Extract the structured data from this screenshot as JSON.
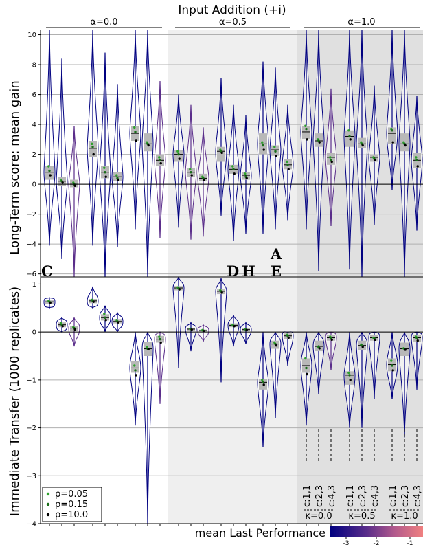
{
  "chart_data": [
    {
      "type": "violin",
      "title": "Input Addition (+i)",
      "ylabel": "Long-Term score: mean gain",
      "ylim": [
        -6.2,
        10.3
      ],
      "yticks": [
        -6,
        -4,
        -2,
        0,
        2,
        4,
        6,
        8,
        10
      ],
      "grid": "horizontal",
      "groups": [
        {
          "label": "α=0.0",
          "background": "#ffffff"
        },
        {
          "label": "α=0.5",
          "background": "#efefef"
        },
        {
          "label": "α=1.0",
          "background": "#e0e0e0"
        }
      ],
      "violins": [
        {
          "median": 0.8,
          "q1": 0.3,
          "q3": 1.2,
          "min": -4.1,
          "max": 10.3,
          "color": "#000080",
          "points": [
            1.2,
            0.9,
            0.6
          ]
        },
        {
          "median": 0.2,
          "q1": -0.1,
          "q3": 0.5,
          "min": -5.0,
          "max": 8.4,
          "color": "#000080",
          "points": [
            0.3,
            0.2,
            0.1
          ]
        },
        {
          "median": 0.0,
          "q1": -0.2,
          "q3": 0.3,
          "min": -6.2,
          "max": 3.9,
          "color": "#5a2d8a",
          "points": [
            0.1,
            0.0,
            -0.1
          ]
        },
        {
          "median": 2.4,
          "q1": 1.8,
          "q3": 2.9,
          "min": -4.1,
          "max": 10.3,
          "color": "#000080",
          "points": [
            2.7,
            2.5,
            2.0
          ]
        },
        {
          "median": 0.8,
          "q1": 0.4,
          "q3": 1.2,
          "min": -6.2,
          "max": 8.8,
          "color": "#000080",
          "points": [
            1.1,
            0.8,
            0.5
          ]
        },
        {
          "median": 0.5,
          "q1": 0.2,
          "q3": 0.8,
          "min": -4.2,
          "max": 6.7,
          "color": "#000080",
          "points": [
            0.6,
            0.4,
            0.3
          ]
        },
        {
          "median": 3.4,
          "q1": 2.9,
          "q3": 3.9,
          "min": -3.0,
          "max": 10.3,
          "color": "#000080",
          "points": [
            3.8,
            3.5,
            2.9
          ]
        },
        {
          "median": 2.7,
          "q1": 2.2,
          "q3": 3.4,
          "min": -6.2,
          "max": 10.3,
          "color": "#000080",
          "points": [
            2.8,
            2.7,
            2.6
          ]
        },
        {
          "median": 1.6,
          "q1": 1.2,
          "q3": 2.0,
          "min": -3.6,
          "max": 6.9,
          "color": "#5a2d8a",
          "points": [
            1.8,
            1.6,
            1.4
          ]
        },
        {
          "median": 2.0,
          "q1": 1.5,
          "q3": 2.3,
          "min": -2.9,
          "max": 6.0,
          "color": "#000080",
          "points": [
            2.2,
            2.0,
            1.7
          ]
        },
        {
          "median": 0.8,
          "q1": 0.5,
          "q3": 1.1,
          "min": -3.7,
          "max": 5.3,
          "color": "#5a2d8a",
          "points": [
            1.0,
            0.8,
            0.6
          ]
        },
        {
          "median": 0.4,
          "q1": 0.2,
          "q3": 0.7,
          "min": -3.5,
          "max": 3.8,
          "color": "#5a2d8a",
          "points": [
            0.5,
            0.4,
            0.3
          ]
        },
        {
          "median": 2.2,
          "q1": 1.5,
          "q3": 2.5,
          "min": -2.1,
          "max": 7.1,
          "color": "#000080",
          "points": [
            2.3,
            2.2,
            2.1
          ]
        },
        {
          "median": 1.0,
          "q1": 0.7,
          "q3": 1.3,
          "min": -3.8,
          "max": 5.3,
          "color": "#000080",
          "points": [
            1.2,
            1.0,
            0.7
          ]
        },
        {
          "median": 0.6,
          "q1": 0.3,
          "q3": 0.8,
          "min": -3.3,
          "max": 4.6,
          "color": "#000080",
          "points": [
            0.7,
            0.5,
            0.4
          ]
        },
        {
          "median": 2.7,
          "q1": 2.0,
          "q3": 3.4,
          "min": -3.3,
          "max": 8.2,
          "color": "#000080",
          "points": [
            2.8,
            2.6,
            2.3
          ]
        },
        {
          "median": 2.3,
          "q1": 1.9,
          "q3": 2.6,
          "min": -3.0,
          "max": 7.8,
          "color": "#000080",
          "points": [
            2.5,
            2.2,
            1.9
          ]
        },
        {
          "median": 1.3,
          "q1": 1.0,
          "q3": 1.7,
          "min": -2.4,
          "max": 5.3,
          "color": "#000080",
          "points": [
            1.5,
            1.3,
            1.0
          ]
        },
        {
          "median": 3.5,
          "q1": 3.0,
          "q3": 3.9,
          "min": -3.0,
          "max": 10.3,
          "color": "#000080",
          "points": [
            3.9,
            3.7,
            3.0
          ]
        },
        {
          "median": 2.9,
          "q1": 2.5,
          "q3": 3.4,
          "min": -5.8,
          "max": 10.3,
          "color": "#000080",
          "points": [
            3.0,
            2.9,
            2.8
          ]
        },
        {
          "median": 1.8,
          "q1": 1.3,
          "q3": 2.1,
          "min": -2.8,
          "max": 6.4,
          "color": "#5a2d8a",
          "points": [
            1.8,
            1.6,
            1.5
          ]
        },
        {
          "median": 3.2,
          "q1": 2.5,
          "q3": 3.6,
          "min": -5.7,
          "max": 10.3,
          "color": "#000080",
          "points": [
            3.6,
            3.2,
            3.0
          ]
        },
        {
          "median": 2.7,
          "q1": 2.4,
          "q3": 3.1,
          "min": -6.2,
          "max": 10.3,
          "color": "#000080",
          "points": [
            2.8,
            2.7,
            2.6
          ]
        },
        {
          "median": 1.8,
          "q1": 1.5,
          "q3": 2.0,
          "min": -2.7,
          "max": 6.6,
          "color": "#000080",
          "points": [
            1.8,
            1.7,
            1.6
          ]
        },
        {
          "median": 3.4,
          "q1": 2.7,
          "q3": 3.8,
          "min": -0.4,
          "max": 10.3,
          "color": "#000080",
          "points": [
            3.7,
            3.6,
            2.8
          ]
        },
        {
          "median": 2.7,
          "q1": 2.2,
          "q3": 3.4,
          "min": -6.2,
          "max": 10.3,
          "color": "#000080",
          "points": [
            2.8,
            2.7,
            2.6
          ]
        },
        {
          "median": 1.6,
          "q1": 1.1,
          "q3": 2.1,
          "min": -3.1,
          "max": 5.9,
          "color": "#000080",
          "points": [
            1.8,
            1.6,
            1.2
          ]
        }
      ]
    },
    {
      "type": "violin",
      "ylabel": "Immediate Transfer (1000 replicates)",
      "ylim": [
        -4.0,
        1.15
      ],
      "yticks": [
        -4,
        -3,
        -2,
        -1,
        0,
        1
      ],
      "grid": "horizontal",
      "violins": [
        {
          "median": 0.63,
          "q1": 0.58,
          "q3": 0.66,
          "min": 0.5,
          "max": 0.72,
          "color": "#000080",
          "points": [
            0.65,
            0.63,
            0.61
          ]
        },
        {
          "median": 0.15,
          "q1": 0.1,
          "q3": 0.2,
          "min": 0.0,
          "max": 0.3,
          "color": "#000080",
          "points": [
            0.18,
            0.15,
            0.12
          ]
        },
        {
          "median": 0.08,
          "q1": 0.02,
          "q3": 0.13,
          "min": -0.3,
          "max": 0.3,
          "color": "#5a2d8a",
          "points": [
            0.1,
            0.08,
            0.05
          ]
        },
        {
          "median": 0.65,
          "q1": 0.6,
          "q3": 0.69,
          "min": 0.5,
          "max": 0.95,
          "color": "#000080",
          "points": [
            0.67,
            0.65,
            0.63
          ]
        },
        {
          "median": 0.3,
          "q1": 0.24,
          "q3": 0.37,
          "min": 0.0,
          "max": 0.55,
          "color": "#000080",
          "points": [
            0.38,
            0.3,
            0.25
          ]
        },
        {
          "median": 0.22,
          "q1": 0.18,
          "q3": 0.27,
          "min": 0.0,
          "max": 0.4,
          "color": "#000080",
          "points": [
            0.25,
            0.22,
            0.2
          ]
        },
        {
          "median": -0.75,
          "q1": -0.85,
          "q3": -0.6,
          "min": -1.95,
          "max": 0.0,
          "color": "#000080",
          "points": [
            -0.7,
            -0.8,
            -0.9
          ]
        },
        {
          "median": -0.35,
          "q1": -0.5,
          "q3": -0.2,
          "min": -4.0,
          "max": 0.0,
          "color": "#000080",
          "points": [
            -0.32,
            -0.35,
            -0.36
          ]
        },
        {
          "median": -0.15,
          "q1": -0.22,
          "q3": -0.08,
          "min": -1.5,
          "max": 0.0,
          "color": "#5a2d8a",
          "points": [
            -0.1,
            -0.15,
            -0.22
          ]
        },
        {
          "median": 0.92,
          "q1": 0.87,
          "q3": 0.96,
          "min": -0.75,
          "max": 1.15,
          "color": "#000080",
          "points": [
            0.93,
            0.91,
            0.89
          ]
        },
        {
          "median": 0.06,
          "q1": 0.03,
          "q3": 0.08,
          "min": -0.4,
          "max": 0.2,
          "color": "#000080",
          "points": [
            0.07,
            0.06,
            0.05
          ]
        },
        {
          "median": 0.03,
          "q1": 0.01,
          "q3": 0.05,
          "min": -0.2,
          "max": 0.15,
          "color": "#5a2d8a",
          "points": [
            0.04,
            0.03,
            0.02
          ]
        },
        {
          "median": 0.85,
          "q1": 0.79,
          "q3": 0.89,
          "min": -1.05,
          "max": 1.12,
          "color": "#000080",
          "points": [
            0.87,
            0.85,
            0.82
          ]
        },
        {
          "median": 0.14,
          "q1": 0.1,
          "q3": 0.18,
          "min": -0.3,
          "max": 0.35,
          "color": "#000080",
          "points": [
            0.15,
            0.13,
            0.12
          ]
        },
        {
          "median": 0.05,
          "q1": 0.02,
          "q3": 0.08,
          "min": -0.25,
          "max": 0.2,
          "color": "#000080",
          "points": [
            0.06,
            0.05,
            0.04
          ]
        },
        {
          "median": -1.05,
          "q1": -1.2,
          "q3": -0.98,
          "min": -2.4,
          "max": 0.0,
          "color": "#000080",
          "points": [
            -1.0,
            -1.05,
            -1.1
          ]
        },
        {
          "median": -0.25,
          "q1": -0.35,
          "q3": -0.18,
          "min": -1.8,
          "max": 0.0,
          "color": "#000080",
          "points": [
            -0.22,
            -0.25,
            -0.28
          ]
        },
        {
          "median": -0.08,
          "q1": -0.15,
          "q3": -0.03,
          "min": -0.7,
          "max": 0.0,
          "color": "#000080",
          "points": [
            -0.06,
            -0.08,
            -0.12
          ]
        },
        {
          "median": -0.7,
          "q1": -0.85,
          "q3": -0.55,
          "min": -1.95,
          "max": 0.0,
          "color": "#000080",
          "points": [
            -0.55,
            -0.75,
            -0.88
          ]
        },
        {
          "median": -0.3,
          "q1": -0.4,
          "q3": -0.18,
          "min": -1.3,
          "max": 0.0,
          "color": "#000080",
          "points": [
            -0.32,
            -0.3,
            -0.34
          ]
        },
        {
          "median": -0.12,
          "q1": -0.18,
          "q3": -0.06,
          "min": -0.8,
          "max": 0.0,
          "color": "#5a2d8a",
          "points": [
            -0.1,
            -0.12,
            -0.16
          ]
        },
        {
          "median": -0.9,
          "q1": -1.1,
          "q3": -0.82,
          "min": -2.0,
          "max": 0.0,
          "color": "#000080",
          "points": [
            -0.85,
            -0.9,
            -1.0
          ]
        },
        {
          "median": -0.28,
          "q1": -0.38,
          "q3": -0.18,
          "min": -2.0,
          "max": 0.0,
          "color": "#000080",
          "points": [
            -0.26,
            -0.28,
            -0.31
          ]
        },
        {
          "median": -0.12,
          "q1": -0.18,
          "q3": -0.06,
          "min": -1.4,
          "max": 0.0,
          "color": "#000080",
          "points": [
            -0.12,
            -0.13,
            -0.16
          ]
        },
        {
          "median": -0.68,
          "q1": -0.82,
          "q3": -0.55,
          "min": -1.4,
          "max": 0.0,
          "color": "#000080",
          "points": [
            -0.6,
            -0.7,
            -0.8
          ]
        },
        {
          "median": -0.35,
          "q1": -0.5,
          "q3": -0.22,
          "min": -2.2,
          "max": 0.0,
          "color": "#000080",
          "points": [
            -0.34,
            -0.35,
            -0.37
          ]
        },
        {
          "median": -0.12,
          "q1": -0.2,
          "q3": -0.06,
          "min": -1.2,
          "max": 0.0,
          "color": "#000080",
          "points": [
            -0.1,
            -0.13,
            -0.18
          ]
        }
      ]
    }
  ],
  "panel_letters": [
    "C",
    "D",
    "H",
    "A",
    "E"
  ],
  "legend": [
    {
      "label": "ρ=0.05",
      "color": "#2ca02c"
    },
    {
      "label": "ρ=0.15",
      "color": "#1a6e1a"
    },
    {
      "label": "ρ=10.0",
      "color": "#000000"
    }
  ],
  "combo_labels": [
    "c:1,1",
    "c:2,3",
    "c:4,3"
  ],
  "kappa_labels": [
    "κ=0.0",
    "κ=0.5",
    "κ=1.0"
  ],
  "colorbar": {
    "title": "mean Last Performance",
    "ticks": [
      "-3",
      "-2",
      "-1"
    ],
    "colors": [
      "#000080",
      "#5a2d8a",
      "#b35a8c",
      "#f08080"
    ]
  }
}
